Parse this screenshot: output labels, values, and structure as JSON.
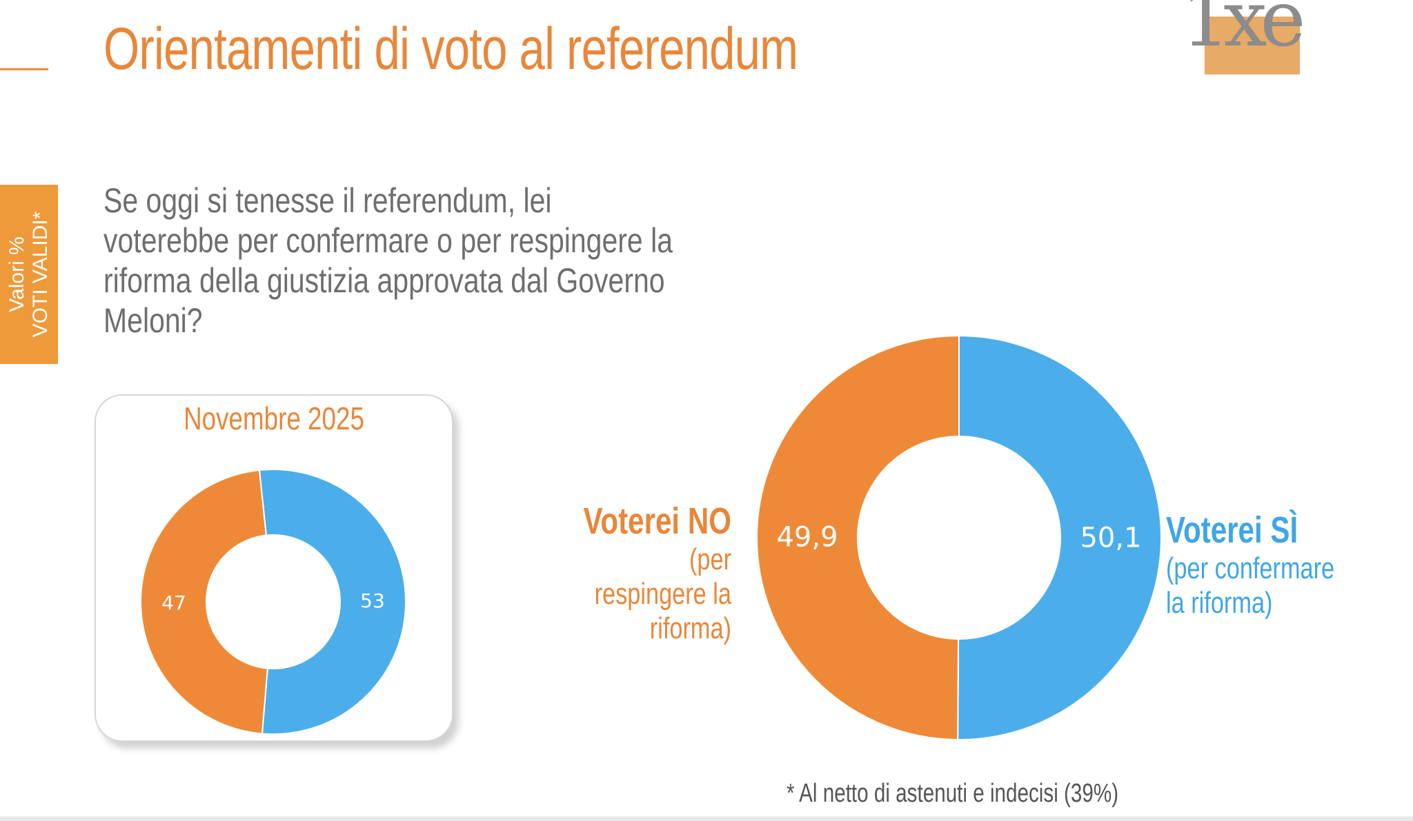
{
  "header": {
    "title": "Orientamenti di voto al referendum",
    "logo_text": "1xe"
  },
  "side_tab": {
    "line1": "Valori %",
    "line2": "VOTI VALIDI*"
  },
  "question": "Se oggi si tenesse il referendum, lei voterebbe per confermare o per respingere la riforma della giustizia approvata dal Governo Meloni?",
  "labels": {
    "no_main": "Voterei NO",
    "no_sub": "(per respingere la riforma)",
    "si_main": "Voterei SÌ",
    "si_sub": "(per confermare la riforma)"
  },
  "footnote": "* Al netto di astenuti e indecisi (39%)",
  "colors": {
    "si": "#4BAEEB",
    "no": "#EE8A37"
  },
  "chart_data": [
    {
      "type": "pie",
      "variant": "donut",
      "title": "Novembre 2025",
      "categories": [
        "Voterei SÌ",
        "Voterei NO"
      ],
      "values": [
        53,
        47
      ],
      "value_labels": [
        "53",
        "47"
      ]
    },
    {
      "type": "pie",
      "variant": "donut",
      "title": "",
      "categories": [
        "Voterei SÌ",
        "Voterei NO"
      ],
      "values": [
        50.1,
        49.9
      ],
      "value_labels": [
        "50,1",
        "49,9"
      ]
    }
  ]
}
